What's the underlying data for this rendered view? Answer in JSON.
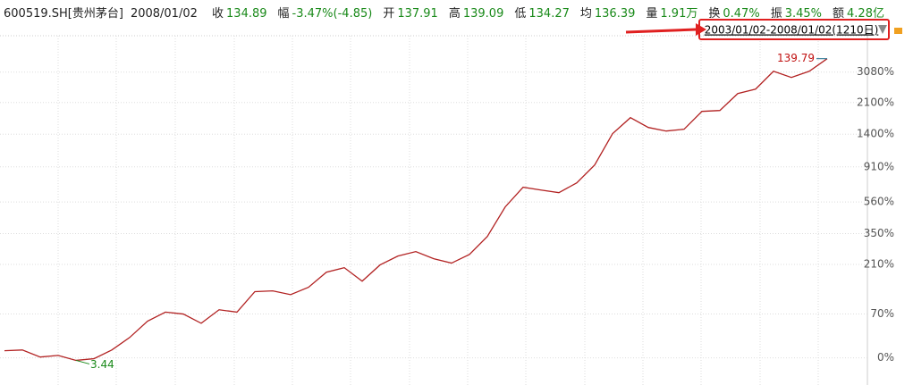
{
  "header": {
    "code": "600519.SH[贵州茅台]",
    "date": "2008/01/02",
    "items": [
      {
        "label": "收",
        "value": "134.89"
      },
      {
        "label": "幅",
        "value": "-3.47%(-4.85)"
      },
      {
        "label": "开",
        "value": "137.91"
      },
      {
        "label": "高",
        "value": "139.09"
      },
      {
        "label": "低",
        "value": "134.27"
      },
      {
        "label": "均",
        "value": "136.39"
      },
      {
        "label": "量",
        "value": "1.91万"
      },
      {
        "label": "换",
        "value": "0.47%"
      },
      {
        "label": "振",
        "value": "3.45%"
      },
      {
        "label": "额",
        "value": "4.28亿"
      }
    ]
  },
  "range": "2003/01/02-2008/01/02(1210日)",
  "chart_data": {
    "type": "line",
    "log_scale": true,
    "grid": true,
    "color": "#b22222",
    "categories": [
      null,
      null,
      null,
      null,
      null,
      null,
      null,
      null,
      null,
      null,
      null,
      null,
      null,
      null,
      null,
      null,
      null,
      null,
      null,
      null,
      null,
      null,
      null,
      null,
      null,
      null,
      null,
      null,
      null,
      null,
      null,
      null,
      null,
      null,
      null,
      null,
      null,
      null,
      null,
      null,
      null,
      null,
      null,
      null,
      null,
      null,
      null
    ],
    "values": [
      9,
      10,
      1,
      3,
      -3,
      -1,
      10,
      28,
      56,
      74,
      70,
      52,
      79,
      74,
      123,
      125,
      115,
      135,
      182,
      198,
      153,
      208,
      243,
      262,
      232,
      215,
      250,
      335,
      522,
      689,
      663,
      639,
      732,
      933,
      1409,
      1732,
      1527,
      1458,
      1493,
      1877,
      1898,
      2353,
      2489,
      3114,
      2881,
      3114,
      3641
    ],
    "ylim": [
      -28,
      4840
    ],
    "yticks": [
      {
        "value": 0,
        "label": "0%"
      },
      {
        "value": 70,
        "label": "70%"
      },
      {
        "value": 210,
        "label": "210%"
      },
      {
        "value": 350,
        "label": "350%"
      },
      {
        "value": 560,
        "label": "560%"
      },
      {
        "value": 910,
        "label": "910%"
      },
      {
        "value": 1400,
        "label": "1400%"
      },
      {
        "value": 2100,
        "label": "2100%"
      },
      {
        "value": 3080,
        "label": "3080%"
      }
    ],
    "annotations": {
      "min": "3.44",
      "max": "139.79"
    }
  }
}
